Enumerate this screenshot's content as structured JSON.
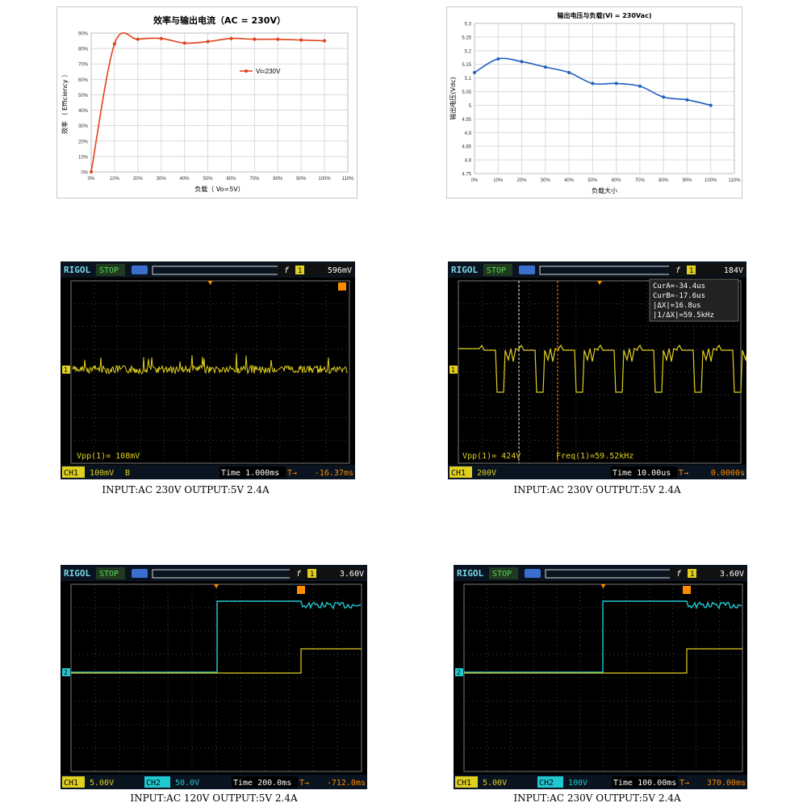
{
  "chart_data": [
    {
      "type": "line",
      "title": "效率与输出电流（AC = 230V）",
      "xlabel": "负载（ Vo=5V）",
      "ylabel": "效率 （ Efficiency ）",
      "x_ticks": [
        "0%",
        "10%",
        "20%",
        "30%",
        "40%",
        "50%",
        "60%",
        "70%",
        "80%",
        "90%",
        "100%",
        "110%"
      ],
      "y_ticks": [
        "0%",
        "10%",
        "20%",
        "30%",
        "40%",
        "50%",
        "60%",
        "70%",
        "80%",
        "90%"
      ],
      "xlim": [
        0,
        110
      ],
      "ylim": [
        0,
        90
      ],
      "legend": "top-right",
      "grid": true,
      "series": [
        {
          "name": "Vi=230V",
          "color": "#e2401a",
          "x": [
            0,
            10,
            20,
            30,
            40,
            50,
            60,
            70,
            80,
            90,
            100
          ],
          "values": [
            0,
            83,
            86,
            86.5,
            83.5,
            84.5,
            86.5,
            86,
            86,
            85.5,
            85
          ]
        }
      ]
    },
    {
      "type": "line",
      "title": "输出电压与负载(Vi = 230Vac)",
      "xlabel": "负载大小",
      "ylabel": "输出电压(Vdc)",
      "x_ticks": [
        "0%",
        "10%",
        "20%",
        "30%",
        "40%",
        "50%",
        "60%",
        "70%",
        "80%",
        "90%",
        "100%",
        "110%"
      ],
      "y_ticks": [
        "4.75",
        "4.8",
        "4.85",
        "4.9",
        "4.95",
        "5",
        "5.05",
        "5.1",
        "5.15",
        "5.2",
        "5.25",
        "5.3"
      ],
      "xlim": [
        0,
        110
      ],
      "ylim": [
        4.75,
        5.3
      ],
      "grid": true,
      "series": [
        {
          "color": "#1f5fbf",
          "x": [
            0,
            10,
            20,
            30,
            40,
            50,
            60,
            70,
            80,
            90,
            100
          ],
          "values": [
            5.12,
            5.17,
            5.16,
            5.14,
            5.12,
            5.08,
            5.08,
            5.07,
            5.03,
            5.02,
            5.0
          ]
        }
      ]
    }
  ],
  "scopes": [
    {
      "brand": "RIGOL",
      "status": "STOP",
      "trig_value": "596mV",
      "trig_ch": "1",
      "measure": "Vpp(1)= 108mV",
      "ch1": "CH1",
      "ch1_scale": "100mV",
      "ch1_mark": "B",
      "time": "Time 1.000ms",
      "offset": "-16.37ms",
      "caption": "INPUT:AC 230V OUTPUT:5V 2.4A"
    },
    {
      "brand": "RIGOL",
      "status": "STOP",
      "trig_value": "184V",
      "trig_ch": "1",
      "measure": "Vpp(1)= 424V",
      "measure2": "Freq(1)=59.52kHz",
      "cursors": [
        "CurA=-34.4us",
        "CurB=-17.6us",
        "|ΔX|=16.8us",
        "|1/ΔX|=59.5kHz"
      ],
      "ch1": "CH1",
      "ch1_scale": "200V",
      "time": "Time 10.00us",
      "offset": "0.0000s",
      "caption": "INPUT:AC 230V OUTPUT:5V 2.4A"
    },
    {
      "brand": "RIGOL",
      "status": "STOP",
      "trig_value": "3.60V",
      "trig_ch": "1",
      "ch1": "CH1",
      "ch1_scale": "5.00V",
      "ch2": "CH2",
      "ch2_scale": "50.0V",
      "time": "Time 200.0ms",
      "offset": "-712.0ms",
      "caption": "INPUT:AC 120V OUTPUT:5V 2.4A"
    },
    {
      "brand": "RIGOL",
      "status": "STOP",
      "trig_value": "3.60V",
      "trig_ch": "1",
      "ch1": "CH1",
      "ch1_scale": "5.00V",
      "ch2": "CH2",
      "ch2_scale": "100V",
      "time": "Time 100.00ms",
      "offset": "370.00ms",
      "caption": "INPUT:AC 230V OUTPUT:5V 2.4A"
    }
  ],
  "colors": {
    "ch1": "#e0d020",
    "ch2": "#20c8d0",
    "orange": "#ff8c00",
    "grid": "#5a5a5a"
  }
}
